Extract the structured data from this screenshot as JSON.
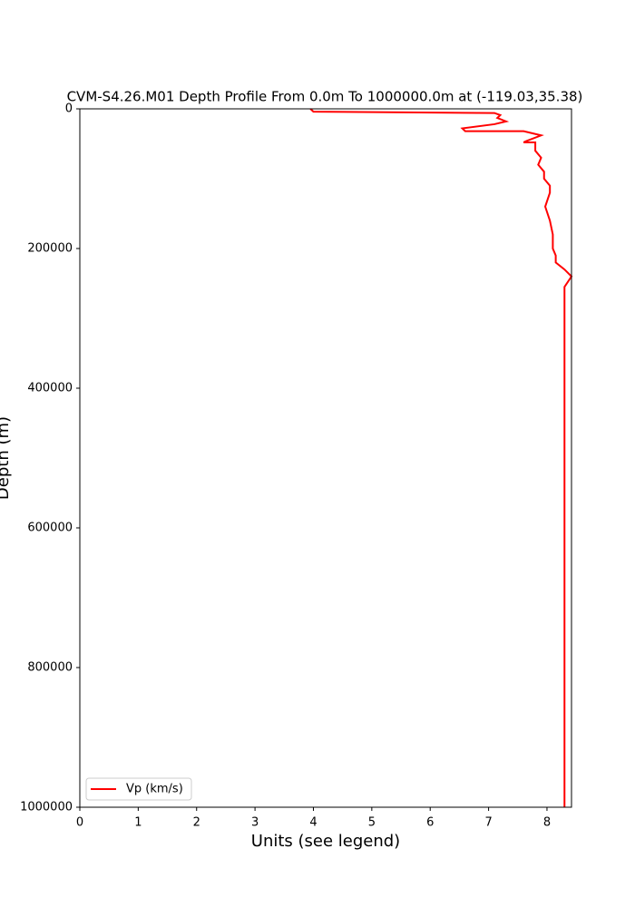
{
  "chart_data": {
    "type": "line",
    "title": "CVM-S4.26.M01 Depth Profile From 0.0m To 1000000.0m at (-119.03,35.38)",
    "x_label": "Units (see legend)",
    "y_label": "Depth (m)",
    "y": [
      0,
      4000,
      6000,
      9000,
      13000,
      18000,
      22000,
      28000,
      32000,
      32000,
      38000,
      46000,
      48000,
      48000,
      60000,
      70000,
      80000,
      90000,
      100000,
      110000,
      120000,
      140000,
      160000,
      180000,
      200000,
      210000,
      220000,
      230000,
      240000,
      255000,
      1000000
    ],
    "series": [
      {
        "name": "Vp (km/s)",
        "color": "#ff0000",
        "values": [
          3.95,
          4.0,
          7.1,
          7.2,
          7.15,
          7.3,
          7.1,
          6.55,
          6.6,
          7.6,
          7.9,
          7.65,
          7.6,
          7.8,
          7.8,
          7.9,
          7.85,
          7.95,
          7.95,
          8.05,
          8.05,
          7.97,
          8.05,
          8.1,
          8.1,
          8.15,
          8.15,
          8.3,
          8.42,
          8.3,
          8.3
        ]
      }
    ],
    "xlim": [
      0,
      8.42
    ],
    "xticks": [
      0,
      1,
      2,
      3,
      4,
      5,
      6,
      7,
      8
    ],
    "ylim": [
      1000000,
      0
    ],
    "yticks": [
      0,
      200000,
      400000,
      600000,
      800000,
      1000000
    ],
    "legend": "lower left"
  }
}
